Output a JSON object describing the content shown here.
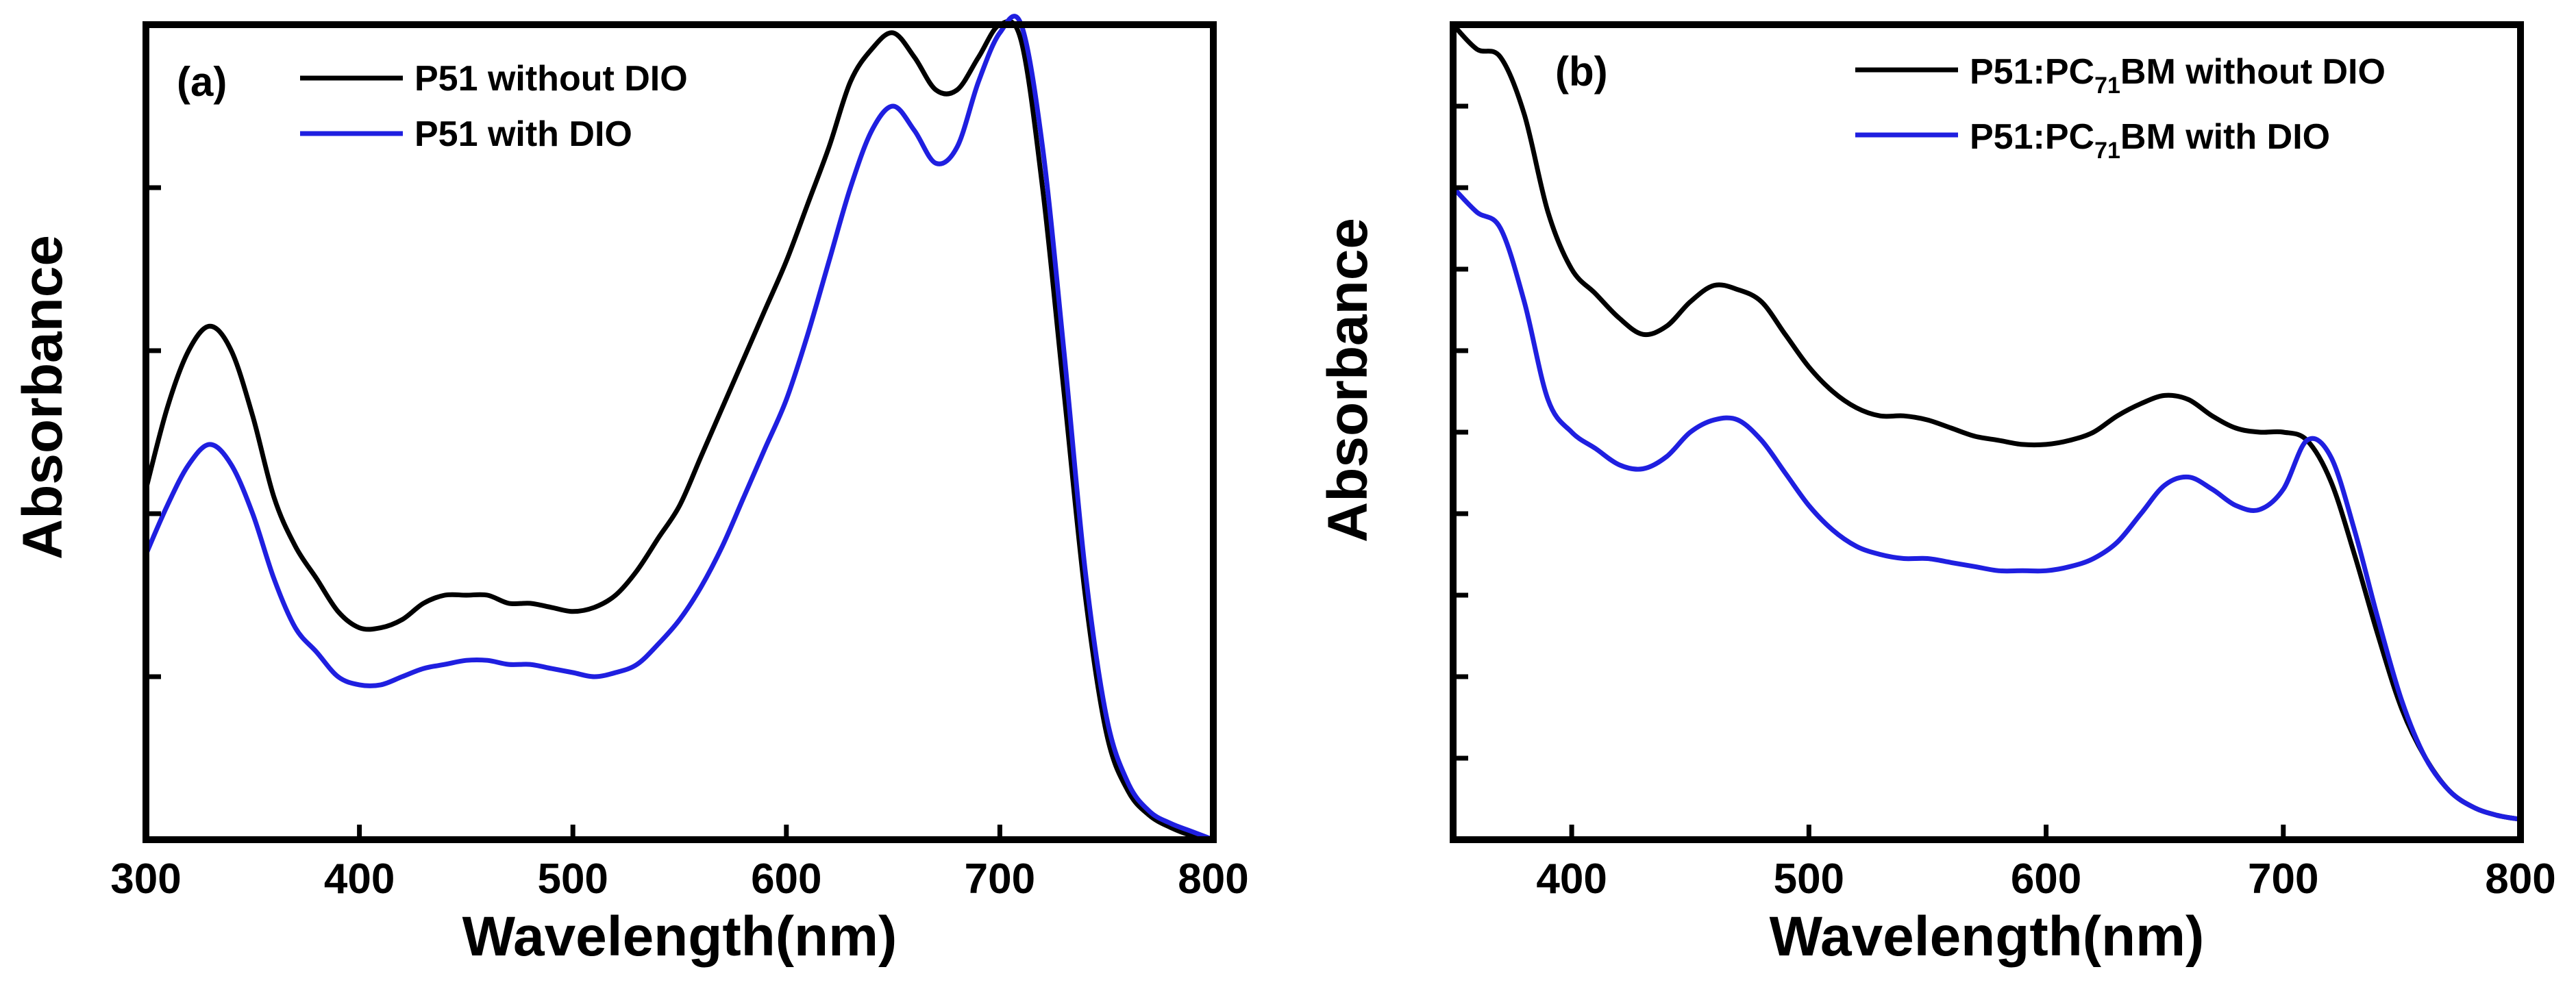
{
  "chart_data": [
    {
      "type": "line",
      "panel_label": "(a)",
      "xlabel": "Wavelength(nm)",
      "ylabel": "Absorbance",
      "xlim": [
        300,
        800
      ],
      "ylim": [
        0,
        1.0
      ],
      "x_ticks": [
        300,
        400,
        500,
        600,
        700,
        800
      ],
      "y_ticks_unlabeled": [
        0.2,
        0.4,
        0.6,
        0.8,
        1.0
      ],
      "legend_location": "top-left",
      "series": [
        {
          "name": "P51 without DIO",
          "color": "#000000",
          "x": [
            300,
            310,
            320,
            330,
            340,
            350,
            360,
            370,
            380,
            390,
            400,
            410,
            420,
            430,
            440,
            450,
            460,
            470,
            480,
            490,
            500,
            510,
            520,
            530,
            540,
            550,
            560,
            570,
            580,
            590,
            600,
            610,
            620,
            630,
            640,
            650,
            660,
            670,
            680,
            690,
            700,
            710,
            720,
            730,
            740,
            750,
            760,
            770,
            780,
            790,
            800
          ],
          "y": [
            0.43,
            0.53,
            0.6,
            0.63,
            0.6,
            0.52,
            0.42,
            0.36,
            0.32,
            0.28,
            0.26,
            0.26,
            0.27,
            0.29,
            0.3,
            0.3,
            0.3,
            0.29,
            0.29,
            0.285,
            0.28,
            0.285,
            0.3,
            0.33,
            0.37,
            0.41,
            0.47,
            0.53,
            0.59,
            0.65,
            0.71,
            0.78,
            0.85,
            0.93,
            0.97,
            0.99,
            0.96,
            0.92,
            0.92,
            0.96,
            1.0,
            0.98,
            0.8,
            0.55,
            0.3,
            0.13,
            0.06,
            0.03,
            0.015,
            0.005,
            0.0
          ]
        },
        {
          "name": "P51 with DIO",
          "color": "#1f1fe0",
          "x": [
            300,
            310,
            320,
            330,
            340,
            350,
            360,
            370,
            380,
            390,
            400,
            410,
            420,
            430,
            440,
            450,
            460,
            470,
            480,
            490,
            500,
            510,
            520,
            530,
            540,
            550,
            560,
            570,
            580,
            590,
            600,
            610,
            620,
            630,
            640,
            650,
            660,
            670,
            680,
            690,
            700,
            710,
            720,
            730,
            740,
            750,
            760,
            770,
            780,
            790,
            800
          ],
          "y": [
            0.35,
            0.41,
            0.46,
            0.485,
            0.46,
            0.4,
            0.32,
            0.26,
            0.23,
            0.2,
            0.19,
            0.19,
            0.2,
            0.21,
            0.215,
            0.22,
            0.22,
            0.215,
            0.215,
            0.21,
            0.205,
            0.2,
            0.205,
            0.215,
            0.24,
            0.27,
            0.31,
            0.36,
            0.42,
            0.48,
            0.54,
            0.62,
            0.71,
            0.8,
            0.87,
            0.9,
            0.87,
            0.83,
            0.85,
            0.93,
            0.99,
            1.0,
            0.85,
            0.6,
            0.33,
            0.15,
            0.07,
            0.035,
            0.02,
            0.01,
            0.0
          ]
        }
      ]
    },
    {
      "type": "line",
      "panel_label": "(b)",
      "xlabel": "Wavelength(nm)",
      "ylabel": "Absorbance",
      "xlim": [
        350,
        800
      ],
      "ylim": [
        0,
        1.0
      ],
      "x_ticks": [
        400,
        500,
        600,
        700,
        800
      ],
      "y_ticks_unlabeled": [
        0.1,
        0.2,
        0.3,
        0.4,
        0.5,
        0.6,
        0.7,
        0.8,
        0.9
      ],
      "legend_location": "top-right",
      "series": [
        {
          "name": "P51:PC71BM without DIO",
          "legend_parts": [
            "P51:PC",
            "71",
            "BM without DIO"
          ],
          "color": "#000000",
          "x": [
            350,
            360,
            370,
            380,
            390,
            400,
            410,
            420,
            430,
            440,
            450,
            460,
            470,
            480,
            490,
            500,
            510,
            520,
            530,
            540,
            550,
            560,
            570,
            580,
            590,
            600,
            610,
            620,
            630,
            640,
            650,
            660,
            670,
            680,
            690,
            700,
            710,
            720,
            730,
            740,
            750,
            760,
            770,
            780,
            790,
            800
          ],
          "y": [
            1.0,
            0.97,
            0.96,
            0.89,
            0.77,
            0.7,
            0.67,
            0.64,
            0.62,
            0.63,
            0.66,
            0.68,
            0.675,
            0.66,
            0.62,
            0.58,
            0.55,
            0.53,
            0.52,
            0.52,
            0.515,
            0.505,
            0.495,
            0.49,
            0.485,
            0.485,
            0.49,
            0.5,
            0.52,
            0.535,
            0.545,
            0.54,
            0.52,
            0.505,
            0.5,
            0.5,
            0.49,
            0.44,
            0.35,
            0.25,
            0.16,
            0.1,
            0.06,
            0.04,
            0.03,
            0.025
          ]
        },
        {
          "name": "P51:PC71BM with DIO",
          "legend_parts": [
            "P51:PC",
            "71",
            "BM with DIO"
          ],
          "color": "#1f1fe0",
          "x": [
            350,
            360,
            370,
            380,
            390,
            400,
            410,
            420,
            430,
            440,
            450,
            460,
            470,
            480,
            490,
            500,
            510,
            520,
            530,
            540,
            550,
            560,
            570,
            580,
            590,
            600,
            610,
            620,
            630,
            640,
            650,
            660,
            670,
            680,
            690,
            700,
            710,
            720,
            730,
            740,
            750,
            760,
            770,
            780,
            790,
            800
          ],
          "y": [
            0.8,
            0.77,
            0.75,
            0.66,
            0.54,
            0.5,
            0.48,
            0.46,
            0.455,
            0.47,
            0.5,
            0.515,
            0.515,
            0.49,
            0.45,
            0.41,
            0.38,
            0.36,
            0.35,
            0.345,
            0.345,
            0.34,
            0.335,
            0.33,
            0.33,
            0.33,
            0.335,
            0.345,
            0.365,
            0.4,
            0.435,
            0.445,
            0.43,
            0.41,
            0.405,
            0.43,
            0.49,
            0.47,
            0.38,
            0.27,
            0.17,
            0.1,
            0.06,
            0.04,
            0.03,
            0.025
          ]
        }
      ]
    }
  ]
}
